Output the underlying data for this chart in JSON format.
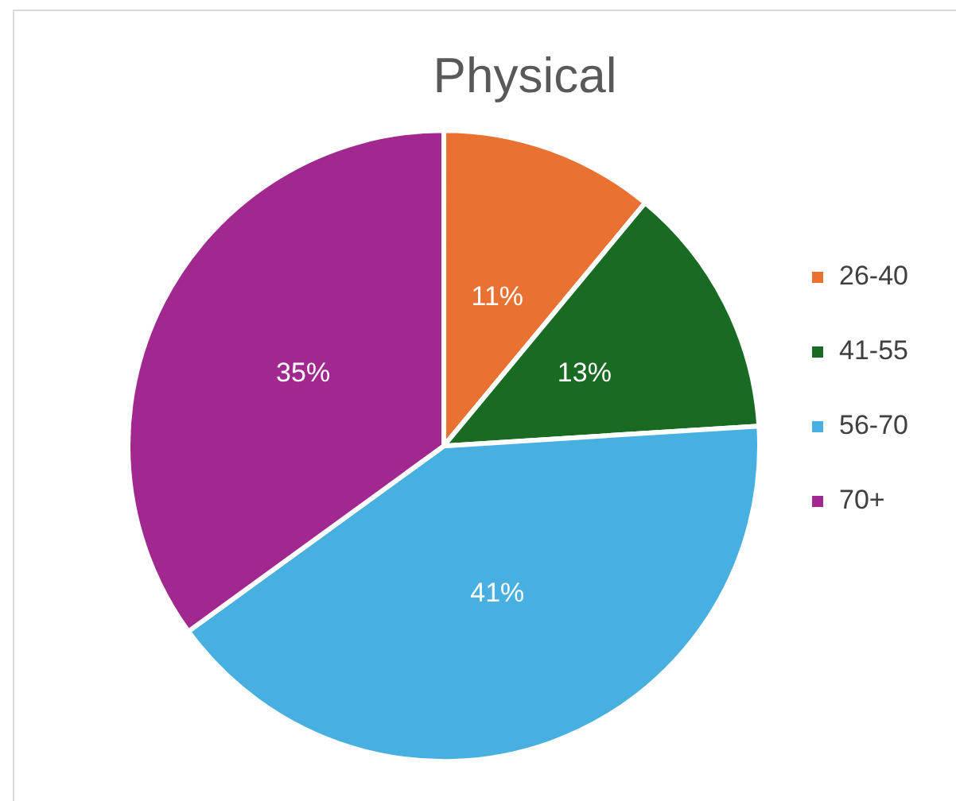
{
  "chart_data": {
    "type": "pie",
    "title": "Physical",
    "categories": [
      "26-40",
      "41-55",
      "56-70",
      "70+"
    ],
    "values": [
      11,
      13,
      41,
      35
    ],
    "value_labels": [
      "11%",
      "13%",
      "41%",
      "35%"
    ],
    "colors": [
      "#e97132",
      "#196b24",
      "#47b0e0",
      "#a0288f"
    ],
    "legend": "right"
  }
}
